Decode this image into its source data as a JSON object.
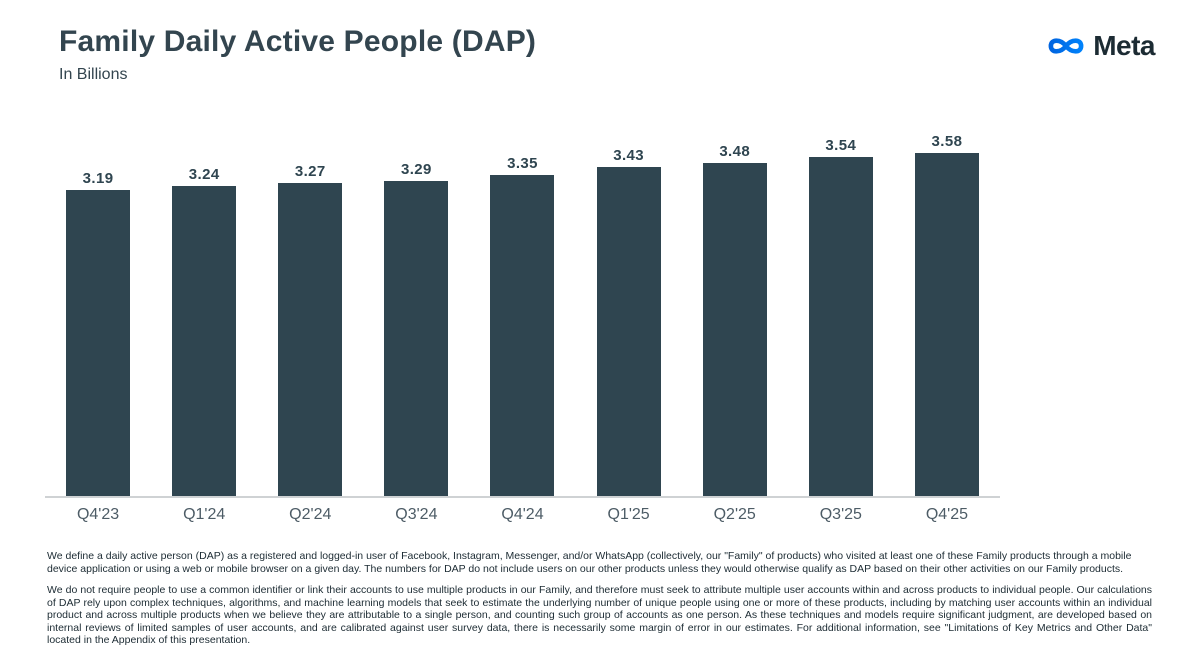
{
  "header": {
    "title": "Family Daily Active People (DAP)",
    "subtitle": "In Billions"
  },
  "logo": {
    "brand": "Meta",
    "icon": "meta-infinity-icon",
    "gradient_start": "#0064E0",
    "gradient_end": "#0082FB",
    "text_color": "#1C2B33"
  },
  "chart_data": {
    "type": "bar",
    "categories": [
      "Q4'23",
      "Q1'24",
      "Q2'24",
      "Q3'24",
      "Q4'24",
      "Q1'25",
      "Q2'25",
      "Q3'25",
      "Q4'25"
    ],
    "values": [
      3.19,
      3.24,
      3.27,
      3.29,
      3.35,
      3.43,
      3.48,
      3.54,
      3.58
    ],
    "value_labels": [
      "3.19",
      "3.24",
      "3.27",
      "3.29",
      "3.35",
      "3.43",
      "3.48",
      "3.54",
      "3.58"
    ],
    "title": "Family Daily Active People (DAP)",
    "xlabel": "",
    "ylabel": "In Billions",
    "ylim": [
      0,
      3.58
    ],
    "grid": false,
    "legend": "none",
    "bar_color": "#2F4550",
    "axis_line_color": "#cfd2d4",
    "data_labels": "above bars"
  },
  "footnotes": [
    "We define a daily active person (DAP) as a registered and logged-in user of Facebook, Instagram, Messenger, and/or WhatsApp (collectively, our \"Family\" of products) who visited at least one of these Family products through a mobile device application or using a web or mobile browser on a given day. The numbers for DAP do not include users on our other products unless they would otherwise qualify as DAP based on their other activities on our Family products.",
    "We do not require people to use a common identifier or link their accounts to use multiple products in our Family, and therefore must seek to attribute multiple user accounts within and across products to individual people. Our calculations of DAP rely upon complex techniques, algorithms, and machine learning models that seek to estimate the underlying number of unique people using one or more of these products, including by matching user accounts within an individual product and across multiple products when we believe they are attributable to a single person, and counting such group of accounts as one person. As these techniques and models require significant judgment, are developed based on internal reviews of limited samples of user accounts, and are calibrated against user survey data, there is necessarily some margin of error in our estimates. For additional information, see \"Limitations of Key Metrics and Other Data\" located in the Appendix of this presentation."
  ]
}
